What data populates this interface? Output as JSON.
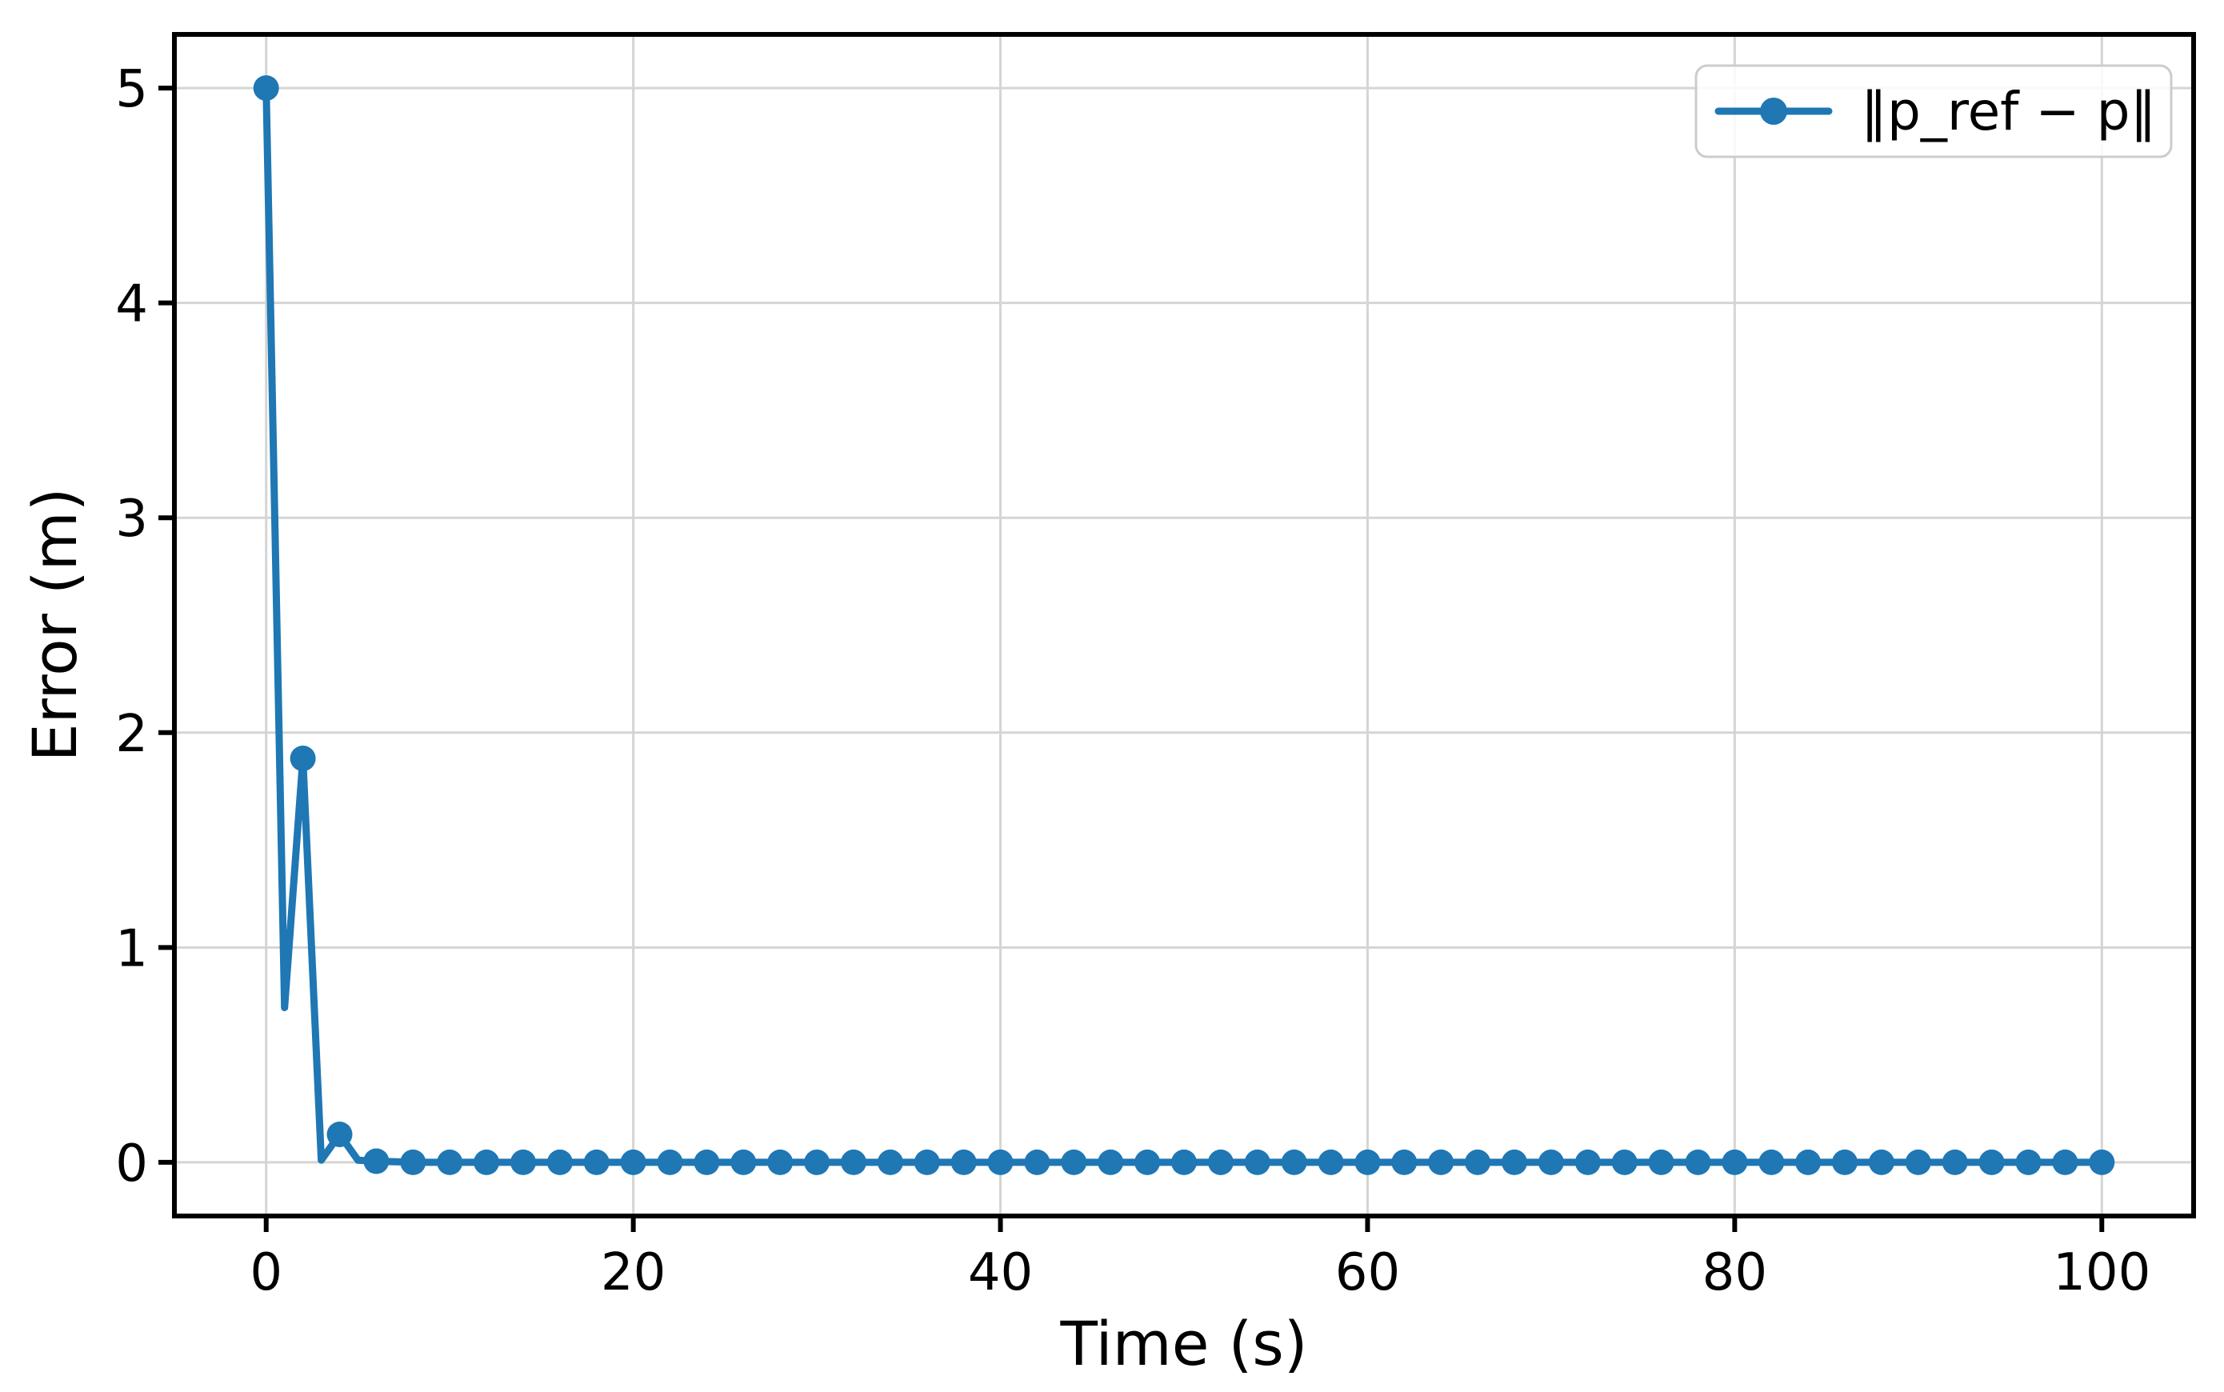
{
  "window": {
    "background": "#ffffff"
  },
  "chart_data": {
    "type": "line",
    "title": "",
    "xlabel": "Time (s)",
    "ylabel": "Error (m)",
    "xlim": [
      -5,
      105
    ],
    "ylim": [
      -0.25,
      5.25
    ],
    "xticks": [
      "0",
      "20",
      "40",
      "60",
      "80",
      "100"
    ],
    "xtick_values": [
      0,
      20,
      40,
      60,
      80,
      100
    ],
    "yticks": [
      "0",
      "1",
      "2",
      "3",
      "4",
      "5"
    ],
    "ytick_values": [
      0,
      1,
      2,
      3,
      4,
      5
    ],
    "grid": true,
    "grid_color": "#d5d5d5",
    "spine_color": "#000000",
    "legend": {
      "position": "upper-right",
      "label": "‖p_ref − p‖",
      "border_color": "#cccccc",
      "background": "#ffffff"
    },
    "series": [
      {
        "name": "‖p_ref − p‖",
        "color": "#1f77b4",
        "marker": "circle",
        "marker_every": 2,
        "x": [
          0,
          1,
          2,
          3,
          4,
          5,
          6,
          8,
          10,
          12,
          14,
          16,
          18,
          20,
          22,
          24,
          26,
          28,
          30,
          32,
          34,
          36,
          38,
          40,
          42,
          44,
          46,
          48,
          50,
          52,
          54,
          56,
          58,
          60,
          62,
          64,
          66,
          68,
          70,
          72,
          74,
          76,
          78,
          80,
          82,
          84,
          86,
          88,
          90,
          92,
          94,
          96,
          98,
          100
        ],
        "y": [
          5.0,
          0.72,
          1.88,
          0.01,
          0.13,
          0.01,
          0.005,
          0,
          0,
          0,
          0,
          0,
          0,
          0,
          0,
          0,
          0,
          0,
          0,
          0,
          0,
          0,
          0,
          0,
          0,
          0,
          0,
          0,
          0,
          0,
          0,
          0,
          0,
          0,
          0,
          0,
          0,
          0,
          0,
          0,
          0,
          0,
          0,
          0,
          0,
          0,
          0,
          0,
          0,
          0,
          0,
          0,
          0,
          0
        ]
      }
    ]
  }
}
